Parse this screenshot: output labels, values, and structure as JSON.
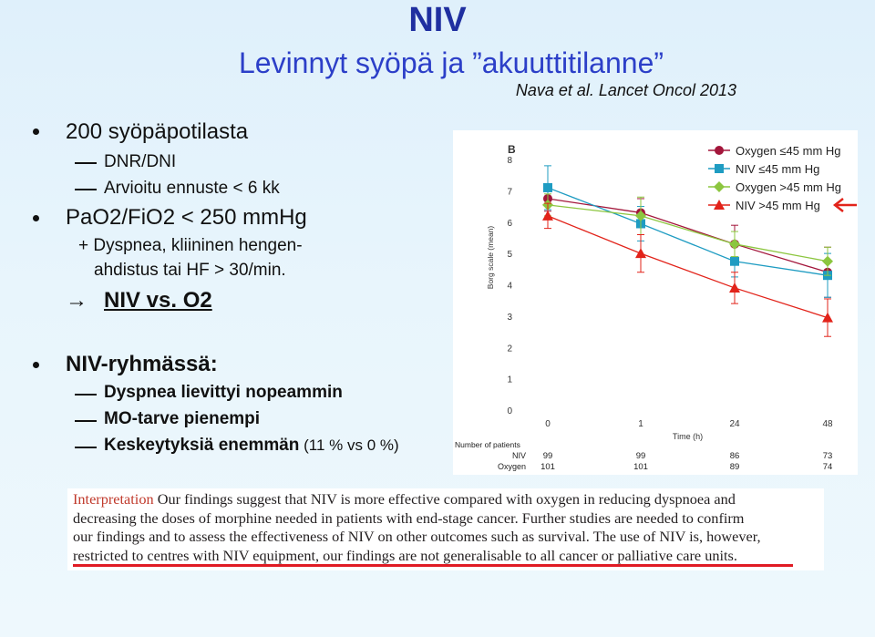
{
  "slide": {
    "title": "NIV",
    "subtitle": "Levinnyt syöpä ja ”akuuttitilanne”",
    "citation": "Nava et al. Lancet Oncol 2013"
  },
  "bullets": {
    "b1": "200 syöpäpotilasta",
    "b1_sub1": "DNR/DNI",
    "b1_sub2": "Arvioitu ennuste < 6 kk",
    "b2": "PaO2/FiO2 < 250 mmHg",
    "b2_line1": "+ Dyspnea, kliininen hengen-",
    "b2_line2": "ahdistus tai HF > 30/min.",
    "arrow": "→",
    "conclusion": "NIV vs. O2",
    "b3": "NIV-ryhmässä:",
    "b3_sub1": "Dyspnea lievittyi nopeammin",
    "b3_sub2": "MO-tarve pienempi",
    "b3_sub3_bold": "Keskeytyksiä enemmän",
    "b3_sub3_rest": " (11 % vs 0 %)"
  },
  "chart_data": {
    "type": "line",
    "panel_label": "B",
    "ylabel": "Borg scale (mean)",
    "xlabel": "Time (h)",
    "x": [
      0,
      1,
      24,
      48
    ],
    "x_tick_labels": [
      "0",
      "1",
      "24",
      "48"
    ],
    "ylim": [
      0,
      8
    ],
    "y_ticks": [
      0,
      1,
      2,
      3,
      4,
      5,
      6,
      7,
      8
    ],
    "legend_position": "top-right",
    "series": [
      {
        "name": "Oxygen ≤45 mm Hg",
        "color": "#a3163b",
        "marker": "circle",
        "values": [
          6.75,
          6.3,
          5.3,
          4.4
        ],
        "err": [
          0.4,
          0.45,
          0.6,
          0.8
        ]
      },
      {
        "name": "NIV ≤45 mm Hg",
        "color": "#1f9cc2",
        "marker": "square",
        "values": [
          7.1,
          5.95,
          4.75,
          4.3
        ],
        "err": [
          0.7,
          0.55,
          0.5,
          0.7
        ]
      },
      {
        "name": "Oxygen >45 mm Hg",
        "color": "#8cc63f",
        "marker": "diamond",
        "values": [
          6.55,
          6.2,
          5.3,
          4.75
        ],
        "err": [
          0.35,
          0.6,
          0.4,
          0.45
        ]
      },
      {
        "name": "NIV >45 mm Hg",
        "color": "#e2231a",
        "marker": "triangle",
        "values": [
          6.2,
          5.0,
          3.9,
          2.95
        ],
        "err": [
          0.4,
          0.6,
          0.5,
          0.6
        ]
      }
    ],
    "patients_header": "Number of patients",
    "patients": [
      {
        "label": "NIV",
        "values": [
          "99",
          "99",
          "86",
          "73"
        ]
      },
      {
        "label": "Oxygen",
        "values": [
          "101",
          "101",
          "89",
          "74"
        ]
      }
    ],
    "highlight_color": "#e2231a"
  },
  "interpretation": {
    "label": "Interpretation",
    "line1": "Our findings suggest that NIV is more effective compared with oxygen in reducing dyspnoea and",
    "line2": "decreasing the doses of morphine needed in patients with end-stage cancer. Further studies are needed to confirm",
    "line3": "our findings and to assess the effectiveness of NIV on other outcomes such as survival. The use of NIV is, however,",
    "line4": "restricted to centres with NIV equipment, our findings are not generalisable to all cancer or palliative care units."
  }
}
